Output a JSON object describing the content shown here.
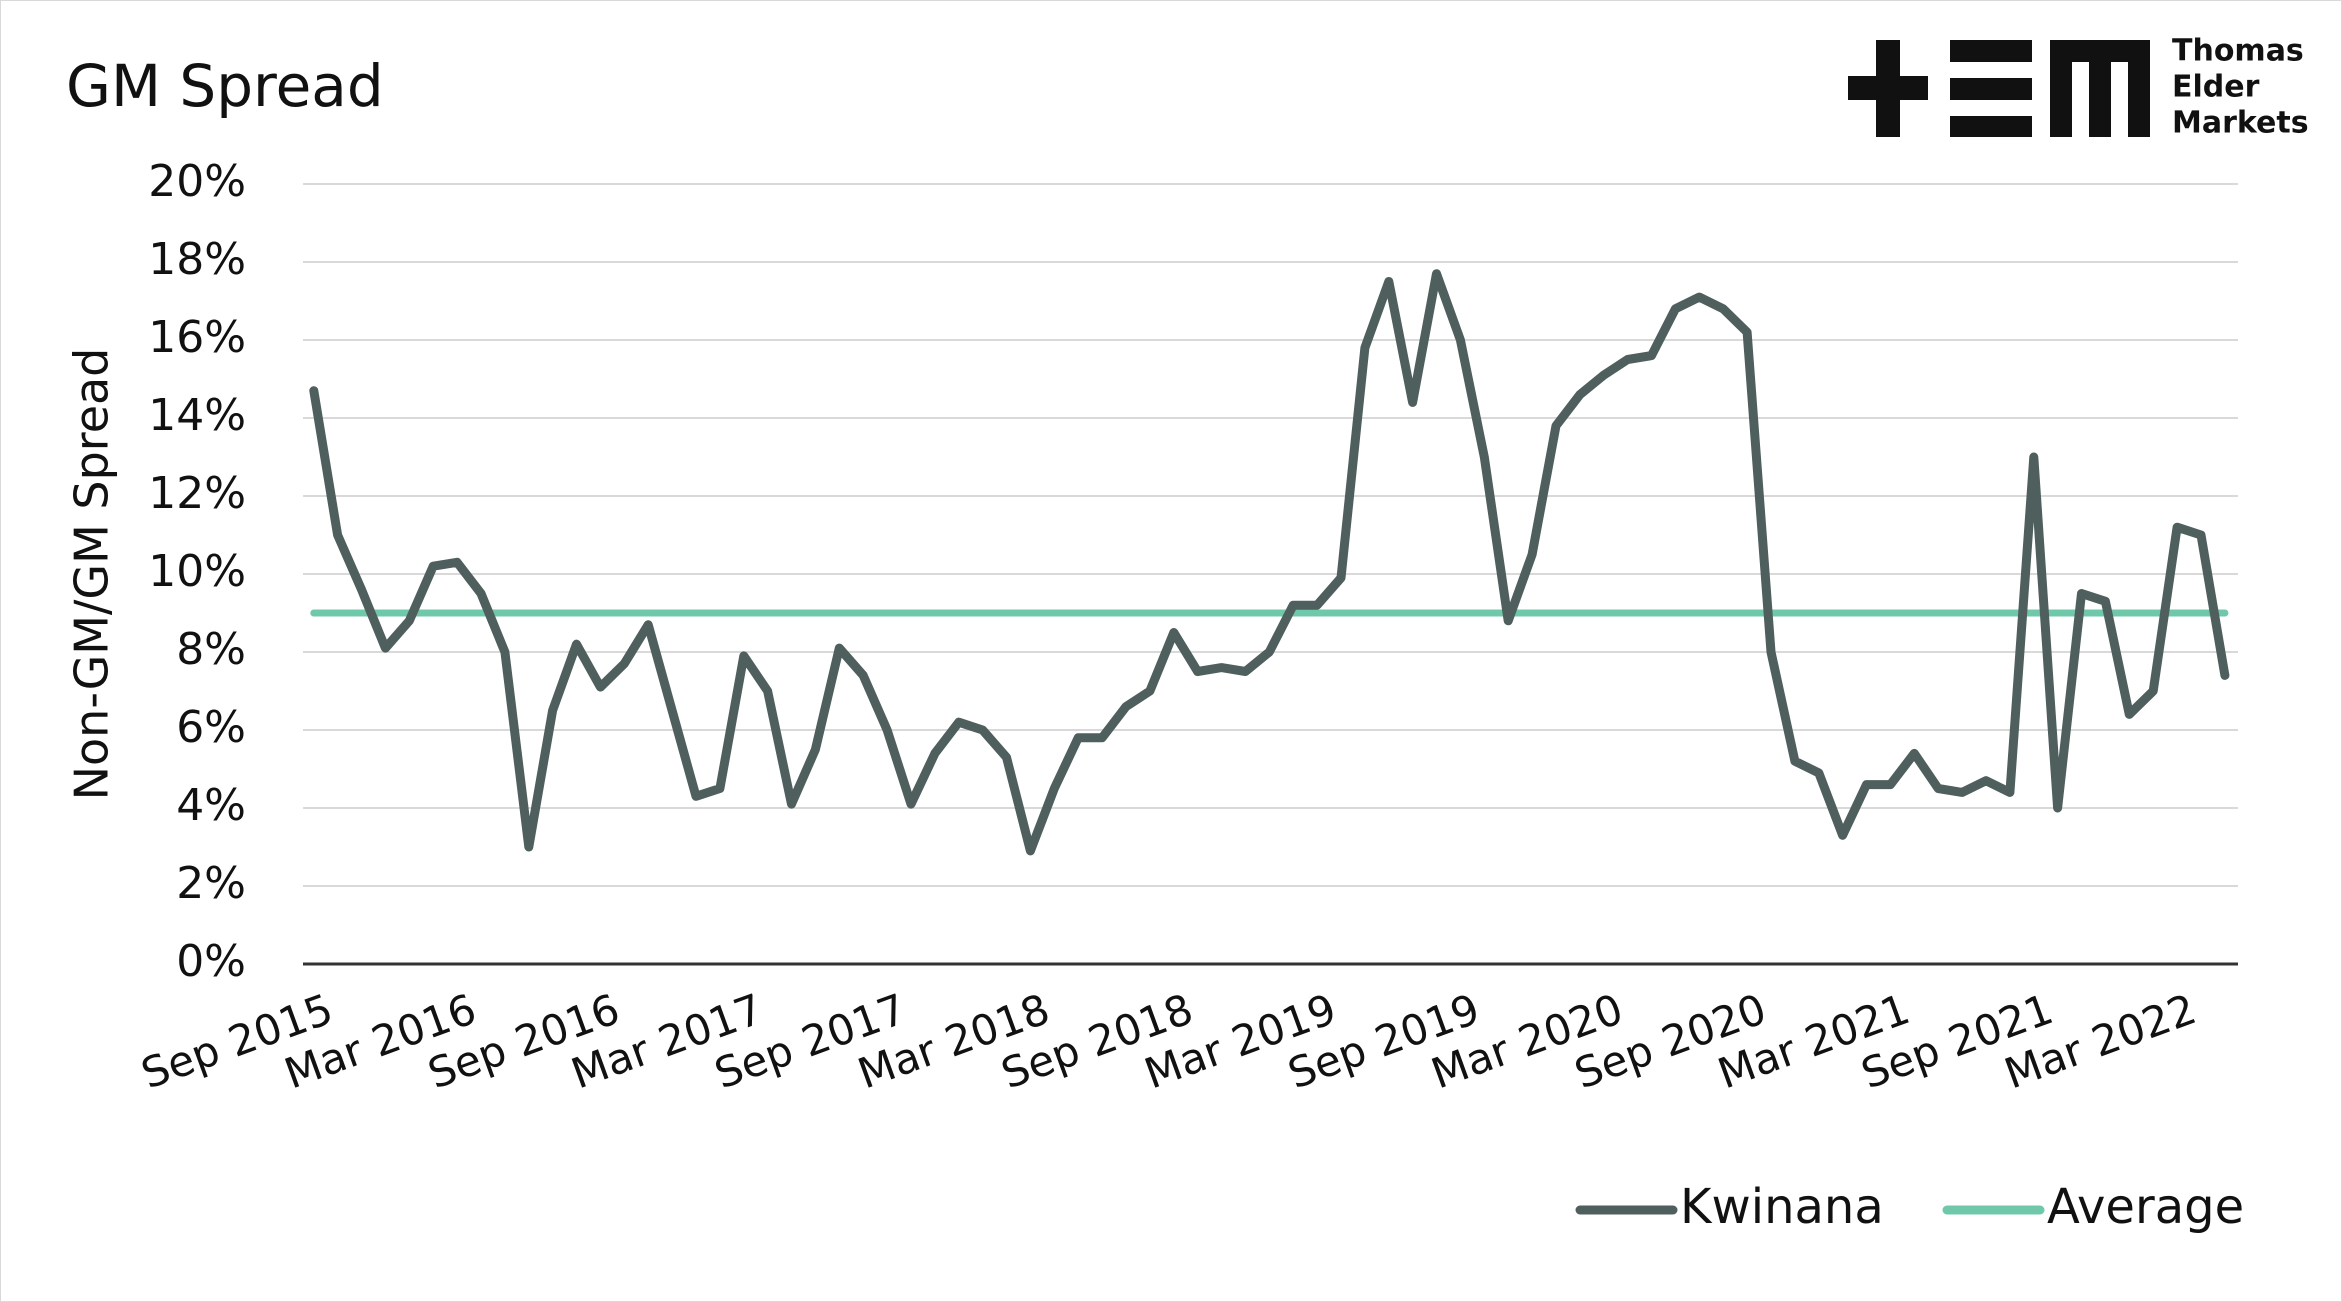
{
  "chart_data": {
    "type": "line",
    "title": "GM Spread",
    "logo": [
      "Thomas",
      "Elder",
      "Markets"
    ],
    "y_label": "Non-GM/GM Spread",
    "categories": [
      "Sep 2015",
      null,
      null,
      null,
      null,
      null,
      "Mar 2016",
      null,
      null,
      null,
      null,
      null,
      "Sep 2016",
      null,
      null,
      null,
      null,
      null,
      "Mar 2017",
      null,
      null,
      null,
      null,
      null,
      "Sep 2017",
      null,
      null,
      null,
      null,
      null,
      "Mar 2018",
      null,
      null,
      null,
      null,
      null,
      "Sep 2018",
      null,
      null,
      null,
      null,
      null,
      "Mar 2019",
      null,
      null,
      null,
      null,
      null,
      "Sep 2019",
      null,
      null,
      null,
      null,
      null,
      "Mar 2020",
      null,
      null,
      null,
      null,
      null,
      "Sep 2020",
      null,
      null,
      null,
      null,
      null,
      "Mar 2021",
      null,
      null,
      null,
      null,
      null,
      "Sep 2021",
      null,
      null,
      null,
      null,
      null,
      "Mar 2022",
      null,
      null
    ],
    "series": [
      {
        "name": "Kwinana",
        "color": "#4f5f5e",
        "values": [
          14.7,
          11,
          9.6,
          8.1,
          8.8,
          10.2,
          10.3,
          9.5,
          8.0,
          3.0,
          6.5,
          8.2,
          7.1,
          7.7,
          8.7,
          6.5,
          4.3,
          4.5,
          7.9,
          7.0,
          4.1,
          5.5,
          8.1,
          7.4,
          6.0,
          4.1,
          5.4,
          6.2,
          6.0,
          5.3,
          2.9,
          4.5,
          5.8,
          5.8,
          6.6,
          7.0,
          8.5,
          7.5,
          7.6,
          7.5,
          8.0,
          9.2,
          9.2,
          9.9,
          15.8,
          17.5,
          14.4,
          17.7,
          16.0,
          13.0,
          8.8,
          10.5,
          13.8,
          14.6,
          15.1,
          15.5,
          15.6,
          16.8,
          17.1,
          16.8,
          16.2,
          8.0,
          5.2,
          4.9,
          3.3,
          4.6,
          4.6,
          5.4,
          4.5,
          4.4,
          4.7,
          4.4,
          13.0,
          4.0,
          9.5,
          9.3,
          6.4,
          7.0,
          11.2,
          11.0,
          7.4
        ]
      },
      {
        "name": "Average",
        "color": "#6fc8a9",
        "values": [
          9,
          9,
          9,
          9,
          9,
          9,
          9,
          9,
          9,
          9,
          9,
          9,
          9,
          9,
          9,
          9,
          9,
          9,
          9,
          9,
          9,
          9,
          9,
          9,
          9,
          9,
          9,
          9,
          9,
          9,
          9,
          9,
          9,
          9,
          9,
          9,
          9,
          9,
          9,
          9,
          9,
          9,
          9,
          9,
          9,
          9,
          9,
          9,
          9,
          9,
          9,
          9,
          9,
          9,
          9,
          9,
          9,
          9,
          9,
          9,
          9,
          9,
          9,
          9,
          9,
          9,
          9,
          9,
          9,
          9,
          9,
          9,
          9,
          9,
          9,
          9,
          9,
          9,
          9,
          9,
          9
        ]
      }
    ],
    "ylim": [
      0,
      20
    ],
    "yticks": [
      {
        "value": 0,
        "label": "0%"
      },
      {
        "value": 2,
        "label": "2%"
      },
      {
        "value": 4,
        "label": "4%"
      },
      {
        "value": 6,
        "label": "6%"
      },
      {
        "value": 8,
        "label": "8%"
      },
      {
        "value": 10,
        "label": "10%"
      },
      {
        "value": 12,
        "label": "12%"
      },
      {
        "value": 14,
        "label": "14%"
      },
      {
        "value": 16,
        "label": "16%"
      },
      {
        "value": 18,
        "label": "18%"
      },
      {
        "value": 20,
        "label": "20%"
      }
    ],
    "grid": true,
    "legend": "bottom-right"
  }
}
